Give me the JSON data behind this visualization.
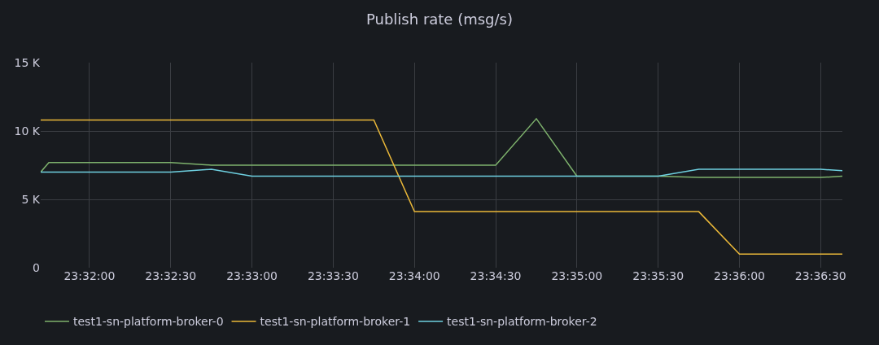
{
  "chart_data": {
    "type": "line",
    "title": "Publish rate (msg/s)",
    "xlim": [
      23.52833,
      23.61056
    ],
    "xticks": [
      {
        "value": 23.53333,
        "label": "23:32:00"
      },
      {
        "value": 23.54167,
        "label": "23:32:30"
      },
      {
        "value": 23.55,
        "label": "23:33:00"
      },
      {
        "value": 23.55833,
        "label": "23:33:30"
      },
      {
        "value": 23.56667,
        "label": "23:34:00"
      },
      {
        "value": 23.575,
        "label": "23:34:30"
      },
      {
        "value": 23.58333,
        "label": "23:35:00"
      },
      {
        "value": 23.59167,
        "label": "23:35:30"
      },
      {
        "value": 23.6,
        "label": "23:36:00"
      },
      {
        "value": 23.60833,
        "label": "23:36:30"
      }
    ],
    "ylim": [
      0,
      15000
    ],
    "yticks": [
      0,
      {
        "value": 5000,
        "label": "5 K"
      },
      {
        "value": 10000,
        "label": "10 K"
      },
      {
        "value": 15000,
        "label": "15 K"
      }
    ],
    "grid": true,
    "legend": "bottom left",
    "marker": "none",
    "line_style": "solid",
    "series": [
      {
        "name": "test1-sn-platform-broker-0",
        "color": "#7eb26d",
        "x": [
          23.52833,
          23.52917,
          23.54167,
          23.54583,
          23.575,
          23.57917,
          23.58333,
          23.59167,
          23.59583,
          23.60833,
          23.61056
        ],
        "values": [
          7000,
          7700,
          7700,
          7500,
          7500,
          10900,
          6700,
          6700,
          6600,
          6600,
          6700
        ]
      },
      {
        "name": "test1-sn-platform-broker-1",
        "color": "#eab839",
        "x": [
          23.52833,
          23.5625,
          23.56667,
          23.59583,
          23.6,
          23.61056
        ],
        "values": [
          10800,
          10800,
          4100,
          4100,
          1000,
          1000
        ]
      },
      {
        "name": "test1-sn-platform-broker-2",
        "color": "#6ed0e0",
        "x": [
          23.52833,
          23.52917,
          23.54167,
          23.54583,
          23.55,
          23.59167,
          23.59583,
          23.60833,
          23.61056
        ],
        "values": [
          7000,
          7000,
          7000,
          7200,
          6700,
          6700,
          7200,
          7200,
          7100
        ]
      }
    ]
  }
}
